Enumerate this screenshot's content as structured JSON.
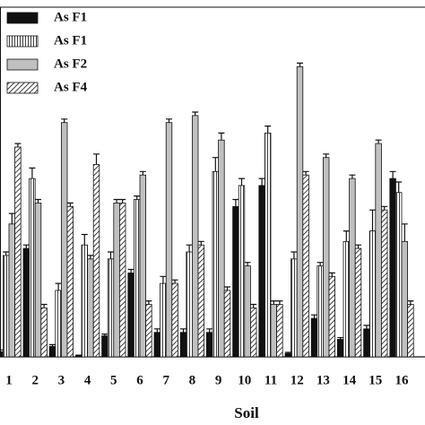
{
  "chart_data": {
    "type": "bar",
    "xlabel": "Soil",
    "categories": [
      "1",
      "2",
      "3",
      "4",
      "5",
      "6",
      "7",
      "8",
      "9",
      "10",
      "11",
      "12",
      "13",
      "14",
      "15",
      "16"
    ],
    "ylim": [
      0,
      100
    ],
    "legend": "upper left",
    "series": [
      {
        "name": "As F1",
        "color": "#111111",
        "hatch": "none",
        "values": [
          1.5,
          31,
          3,
          0.3,
          6,
          24,
          7,
          7,
          7,
          43,
          49,
          1,
          11,
          5,
          8,
          51
        ],
        "errors": [
          0.5,
          1,
          0.5,
          0.2,
          0.5,
          1,
          1,
          1,
          1,
          2,
          2,
          0.3,
          1,
          0.5,
          1,
          2
        ]
      },
      {
        "name": "As F1",
        "color": "#ffffff",
        "hatch": "vertical",
        "values": [
          29,
          51,
          19,
          32,
          28,
          45,
          21,
          30,
          53,
          49,
          64,
          28,
          26,
          33,
          36,
          47
        ],
        "errors": [
          1,
          3,
          2,
          3,
          2,
          1,
          2,
          2,
          4,
          2,
          2,
          2,
          1,
          3,
          6,
          3
        ]
      },
      {
        "name": "As F2",
        "color": "#c0c0c0",
        "hatch": "none",
        "values": [
          38,
          44,
          67,
          28,
          44,
          52,
          67,
          69,
          62,
          26,
          15,
          83,
          57,
          51,
          61,
          33
        ],
        "errors": [
          3,
          1,
          1,
          1,
          1,
          1,
          1,
          1,
          2,
          1,
          1,
          1,
          1,
          1,
          1,
          5
        ]
      },
      {
        "name": "As F4",
        "color": "#ffffff",
        "hatch": "diagonal",
        "values": [
          60,
          14,
          43,
          55,
          44,
          15,
          21,
          32,
          19,
          14,
          15,
          52,
          23,
          31,
          42,
          15
        ],
        "errors": [
          1,
          1,
          1,
          3,
          1,
          1,
          1,
          1,
          1,
          1,
          1,
          1,
          1,
          1,
          1,
          1
        ]
      }
    ]
  }
}
